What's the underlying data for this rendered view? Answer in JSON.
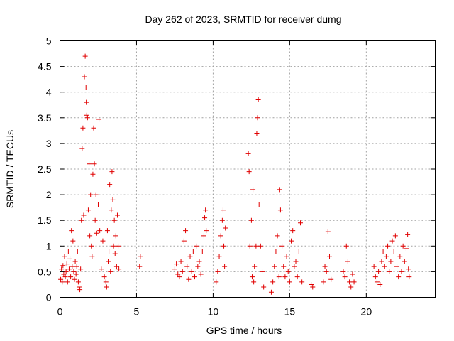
{
  "chart_data": {
    "type": "scatter",
    "title": "Day 262 of 2023, SRMTID for receiver dumg",
    "xlabel": "GPS time / hours",
    "ylabel": "SRMTID / TECUs",
    "xlim": [
      0,
      24.5
    ],
    "ylim": [
      0,
      5
    ],
    "xticks": [
      0,
      5,
      10,
      15,
      20
    ],
    "xtick_labels": [
      "0",
      "5",
      "10",
      "15",
      "20"
    ],
    "yticks": [
      0,
      0.5,
      1,
      1.5,
      2,
      2.5,
      3,
      3.5,
      4,
      4.5,
      5
    ],
    "ytick_labels": [
      "0",
      "0.5",
      "1",
      "1.5",
      "2",
      "2.5",
      "3",
      "3.5",
      "4",
      "4.5",
      "5"
    ],
    "grid": true,
    "marker": "+",
    "series_color": "#e00000",
    "series": [
      {
        "name": "SRMTID",
        "points": [
          [
            0.05,
            0.35
          ],
          [
            0.1,
            0.55
          ],
          [
            0.15,
            0.3
          ],
          [
            0.2,
            0.62
          ],
          [
            0.25,
            0.45
          ],
          [
            0.3,
            0.8
          ],
          [
            0.35,
            0.4
          ],
          [
            0.4,
            0.5
          ],
          [
            0.45,
            0.65
          ],
          [
            0.5,
            0.3
          ],
          [
            0.55,
            0.9
          ],
          [
            0.6,
            0.55
          ],
          [
            0.65,
            0.75
          ],
          [
            0.7,
            0.4
          ],
          [
            0.75,
            1.3
          ],
          [
            0.8,
            0.6
          ],
          [
            0.85,
            1.1
          ],
          [
            0.9,
            0.5
          ],
          [
            0.95,
            0.35
          ],
          [
            1.0,
            0.7
          ],
          [
            1.05,
            0.45
          ],
          [
            1.1,
            0.6
          ],
          [
            1.15,
            0.9
          ],
          [
            1.2,
            0.3
          ],
          [
            1.25,
            0.2
          ],
          [
            1.3,
            0.15
          ],
          [
            1.35,
            0.55
          ],
          [
            1.4,
            1.5
          ],
          [
            1.45,
            2.9
          ],
          [
            1.5,
            3.3
          ],
          [
            1.55,
            1.6
          ],
          [
            1.6,
            4.3
          ],
          [
            1.65,
            4.7
          ],
          [
            1.7,
            4.1
          ],
          [
            1.72,
            3.8
          ],
          [
            1.75,
            3.55
          ],
          [
            1.8,
            3.5
          ],
          [
            1.85,
            1.7
          ],
          [
            1.9,
            2.6
          ],
          [
            1.95,
            1.2
          ],
          [
            2.0,
            2.0
          ],
          [
            2.05,
            1.0
          ],
          [
            2.1,
            0.8
          ],
          [
            2.15,
            2.4
          ],
          [
            2.2,
            3.3
          ],
          [
            2.25,
            2.6
          ],
          [
            2.3,
            1.5
          ],
          [
            2.35,
            2.0
          ],
          [
            2.4,
            1.25
          ],
          [
            2.5,
            1.8
          ],
          [
            2.55,
            3.47
          ],
          [
            2.6,
            1.3
          ],
          [
            2.7,
            0.55
          ],
          [
            2.8,
            1.1
          ],
          [
            2.9,
            0.4
          ],
          [
            3.0,
            0.3
          ],
          [
            3.05,
            0.2
          ],
          [
            3.1,
            1.3
          ],
          [
            3.15,
            0.7
          ],
          [
            3.2,
            0.9
          ],
          [
            3.25,
            2.2
          ],
          [
            3.3,
            0.5
          ],
          [
            3.35,
            1.7
          ],
          [
            3.4,
            2.45
          ],
          [
            3.45,
            1.9
          ],
          [
            3.5,
            1.0
          ],
          [
            3.55,
            1.5
          ],
          [
            3.6,
            0.85
          ],
          [
            3.65,
            1.2
          ],
          [
            3.7,
            0.6
          ],
          [
            3.75,
            1.6
          ],
          [
            3.8,
            1.0
          ],
          [
            3.85,
            0.55
          ],
          [
            5.2,
            0.6
          ],
          [
            5.25,
            0.8
          ],
          [
            7.5,
            0.55
          ],
          [
            7.6,
            0.65
          ],
          [
            7.7,
            0.45
          ],
          [
            7.8,
            0.4
          ],
          [
            7.9,
            0.7
          ],
          [
            8.0,
            0.5
          ],
          [
            8.1,
            1.1
          ],
          [
            8.2,
            1.3
          ],
          [
            8.3,
            0.6
          ],
          [
            8.4,
            0.35
          ],
          [
            8.5,
            0.8
          ],
          [
            8.6,
            0.5
          ],
          [
            8.7,
            0.9
          ],
          [
            8.8,
            0.4
          ],
          [
            8.9,
            1.0
          ],
          [
            9.0,
            0.6
          ],
          [
            9.1,
            0.7
          ],
          [
            9.2,
            0.45
          ],
          [
            9.3,
            0.9
          ],
          [
            9.4,
            1.2
          ],
          [
            9.45,
            1.55
          ],
          [
            9.5,
            1.7
          ],
          [
            9.55,
            1.3
          ],
          [
            10.2,
            0.3
          ],
          [
            10.3,
            0.5
          ],
          [
            10.4,
            0.8
          ],
          [
            10.5,
            1.2
          ],
          [
            10.6,
            1.5
          ],
          [
            10.65,
            1.7
          ],
          [
            10.7,
            1.0
          ],
          [
            10.75,
            0.6
          ],
          [
            10.8,
            1.35
          ],
          [
            12.3,
            2.8
          ],
          [
            12.35,
            2.45
          ],
          [
            12.4,
            1.0
          ],
          [
            12.5,
            1.5
          ],
          [
            12.55,
            0.4
          ],
          [
            12.6,
            2.1
          ],
          [
            12.65,
            0.3
          ],
          [
            12.7,
            0.6
          ],
          [
            12.8,
            1.0
          ],
          [
            12.85,
            3.2
          ],
          [
            12.9,
            3.5
          ],
          [
            12.95,
            3.85
          ],
          [
            13.0,
            1.8
          ],
          [
            13.1,
            1.0
          ],
          [
            13.2,
            0.5
          ],
          [
            13.3,
            0.2
          ],
          [
            13.8,
            0.1
          ],
          [
            13.9,
            0.3
          ],
          [
            14.0,
            0.6
          ],
          [
            14.1,
            0.9
          ],
          [
            14.2,
            1.2
          ],
          [
            14.3,
            0.4
          ],
          [
            14.35,
            2.1
          ],
          [
            14.4,
            1.7
          ],
          [
            14.5,
            1.0
          ],
          [
            14.6,
            0.6
          ],
          [
            14.7,
            0.4
          ],
          [
            14.8,
            0.8
          ],
          [
            14.9,
            0.5
          ],
          [
            15.0,
            0.3
          ],
          [
            15.1,
            1.1
          ],
          [
            15.2,
            1.3
          ],
          [
            15.3,
            0.6
          ],
          [
            15.4,
            0.7
          ],
          [
            15.5,
            0.4
          ],
          [
            15.6,
            0.9
          ],
          [
            15.7,
            1.45
          ],
          [
            15.8,
            0.3
          ],
          [
            16.4,
            0.25
          ],
          [
            16.5,
            0.2
          ],
          [
            17.2,
            0.3
          ],
          [
            17.3,
            0.6
          ],
          [
            17.4,
            0.5
          ],
          [
            17.5,
            1.28
          ],
          [
            17.6,
            0.8
          ],
          [
            17.7,
            0.35
          ],
          [
            18.5,
            0.5
          ],
          [
            18.6,
            0.4
          ],
          [
            18.7,
            1.0
          ],
          [
            18.8,
            0.7
          ],
          [
            18.9,
            0.3
          ],
          [
            19.0,
            0.2
          ],
          [
            19.1,
            0.45
          ],
          [
            19.2,
            0.3
          ],
          [
            20.5,
            0.6
          ],
          [
            20.6,
            0.4
          ],
          [
            20.7,
            0.3
          ],
          [
            20.8,
            0.5
          ],
          [
            20.9,
            0.25
          ],
          [
            21.0,
            0.7
          ],
          [
            21.1,
            0.9
          ],
          [
            21.2,
            0.6
          ],
          [
            21.3,
            0.8
          ],
          [
            21.4,
            1.0
          ],
          [
            21.5,
            0.5
          ],
          [
            21.6,
            0.7
          ],
          [
            21.7,
            1.1
          ],
          [
            21.8,
            0.9
          ],
          [
            21.9,
            1.2
          ],
          [
            22.0,
            0.6
          ],
          [
            22.1,
            0.4
          ],
          [
            22.2,
            0.8
          ],
          [
            22.3,
            0.5
          ],
          [
            22.4,
            1.0
          ],
          [
            22.5,
            0.7
          ],
          [
            22.6,
            0.95
          ],
          [
            22.7,
            1.22
          ],
          [
            22.75,
            0.55
          ],
          [
            22.8,
            0.4
          ]
        ]
      }
    ]
  }
}
